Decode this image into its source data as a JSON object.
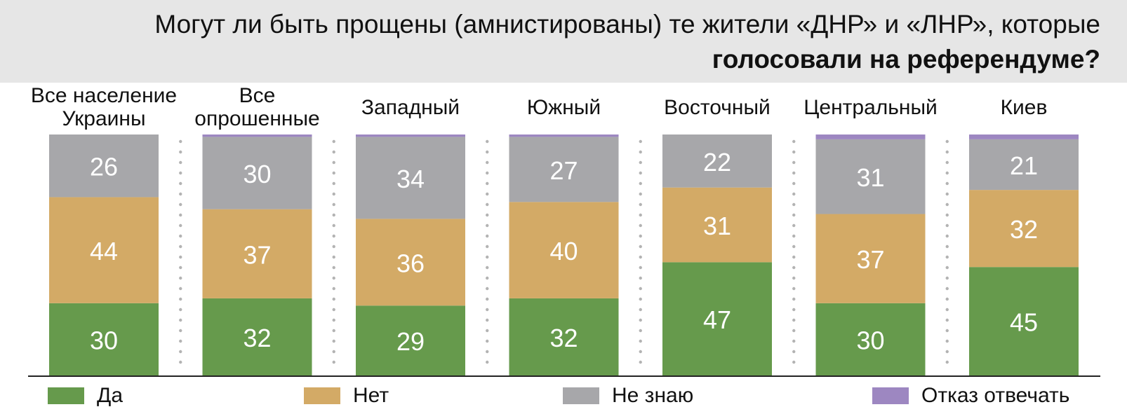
{
  "title": {
    "line1": "Могут ли быть прощены (амнистированы) те жители «ДНР» и «ЛНР»,  которые",
    "line2": "голосовали на референдуме?"
  },
  "chart_data": {
    "type": "bar",
    "stacked": true,
    "categories": [
      [
        "Все население",
        "Украины"
      ],
      [
        "Все",
        "опрошенные"
      ],
      [
        "Западный"
      ],
      [
        "Южный"
      ],
      [
        "Восточный"
      ],
      [
        "Центральный"
      ],
      [
        "Киев"
      ]
    ],
    "series": [
      {
        "name": "Да",
        "color": "#669a4c",
        "values": [
          30,
          32,
          29,
          32,
          47,
          30,
          45
        ],
        "labels": [
          "30",
          "32",
          "29",
          "32",
          "47",
          "30",
          "45"
        ]
      },
      {
        "name": "Нет",
        "color": "#d3aa66",
        "values": [
          44,
          37,
          36,
          40,
          31,
          37,
          32
        ],
        "labels": [
          "44",
          "37",
          "36",
          "40",
          "31",
          "37",
          "32"
        ]
      },
      {
        "name": "Не знаю",
        "color": "#a7a7aa",
        "values": [
          26,
          30,
          34,
          27,
          22,
          31,
          21
        ],
        "labels": [
          "26",
          "30",
          "34",
          "27",
          "22",
          "31",
          "21"
        ]
      },
      {
        "name": "Отказ отвечать",
        "color": "#9d87c1",
        "values": [
          0,
          1,
          1,
          1,
          0,
          2,
          2
        ],
        "labels": [
          "",
          "",
          "",
          "",
          "",
          "",
          ""
        ]
      }
    ],
    "ylim": [
      0,
      100
    ],
    "legend_position": "bottom",
    "grid": false
  }
}
